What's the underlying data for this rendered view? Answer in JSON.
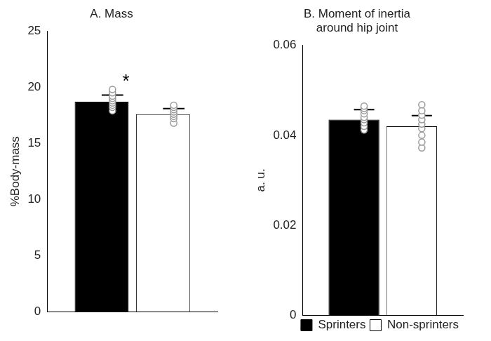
{
  "chart_data": [
    {
      "type": "bar",
      "title": "A. Mass",
      "y_label": "%Body-mass",
      "categories": [
        null
      ],
      "series": [
        {
          "name": "Sprinters",
          "color": "#000000",
          "values": [
            18.7
          ],
          "error": [
            0.6
          ],
          "points": [
            17.9,
            18.2,
            18.4,
            18.6,
            18.8,
            19.0,
            19.2,
            19.5,
            19.8
          ]
        },
        {
          "name": "Non-sprinters",
          "color": "#ffffff",
          "values": [
            17.6
          ],
          "error": [
            0.5
          ],
          "points": [
            16.8,
            17.2,
            17.4,
            17.6,
            17.8,
            18.0,
            18.2,
            18.4
          ]
        }
      ],
      "annotations": [
        {
          "text": "*",
          "series": "Sprinters"
        }
      ],
      "ylim": [
        0,
        25
      ],
      "yticks": [
        0,
        5,
        10,
        15,
        20,
        25
      ],
      "grid": false,
      "tick_labels": "y"
    },
    {
      "type": "bar",
      "title": [
        "B. Moment of inertia",
        "around hip joint"
      ],
      "y_label": "a. u.",
      "categories": [
        null
      ],
      "series": [
        {
          "name": "Sprinters",
          "color": "#000000",
          "values": [
            0.0435
          ],
          "error": [
            0.0022
          ],
          "points": [
            0.0412,
            0.042,
            0.0428,
            0.0435,
            0.044,
            0.0448,
            0.0455,
            0.046,
            0.0465
          ]
        },
        {
          "name": "Non-sprinters",
          "color": "#ffffff",
          "values": [
            0.042
          ],
          "error": [
            0.0024
          ],
          "points": [
            0.0372,
            0.0385,
            0.04,
            0.0415,
            0.0425,
            0.0435,
            0.0445,
            0.0455,
            0.0468
          ]
        }
      ],
      "ylim": [
        0,
        0.06
      ],
      "yticks": [
        0,
        0.02,
        0.04,
        0.06
      ],
      "grid": false,
      "tick_labels": "y",
      "legend": "bottom"
    }
  ]
}
